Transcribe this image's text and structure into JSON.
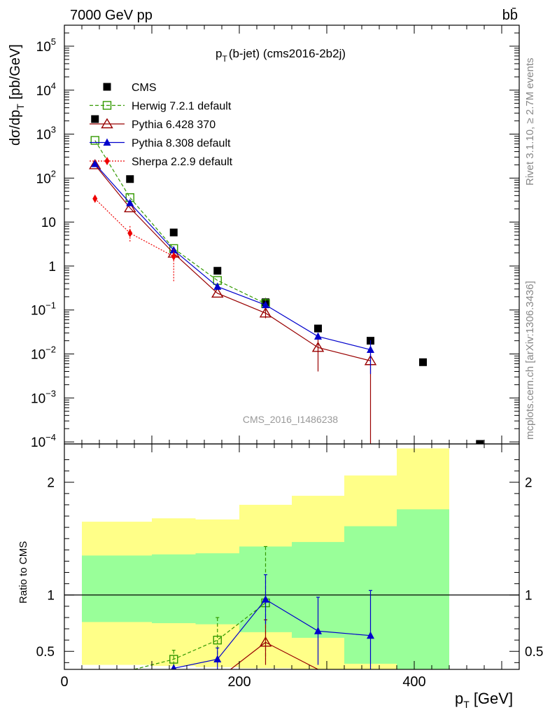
{
  "header": {
    "energy": "7000 GeV pp",
    "process": "bb̄",
    "title_main": "p",
    "title_sub": "T",
    "title_rest": "(b-jet) (cms2016-2b2j)"
  },
  "side_text": {
    "rivet": "Rivet 3.1.10, ≥ 2.7M events",
    "mcplots": "mcplots.cern.ch [arXiv:1306.3436]"
  },
  "watermark": "CMS_2016_I1486238",
  "axes": {
    "y_top_label": "dσ/dp",
    "y_top_label_sub": "T",
    "y_top_label_unit": "[pb/GeV]",
    "y_bottom_label": "Ratio to CMS",
    "x_label": "p",
    "x_label_sub": "T",
    "x_label_unit": "[GeV]"
  },
  "chart_data": [
    {
      "type": "line",
      "panel": "main",
      "yscale": "log",
      "xlim": [
        0,
        520
      ],
      "ylim": [
        9e-05,
        300000
      ],
      "x_ticks": [
        0,
        200,
        400
      ],
      "y_ticks": [
        {
          "v": 0.0001,
          "base": "10",
          "exp": "−4"
        },
        {
          "v": 0.001,
          "base": "10",
          "exp": "−3"
        },
        {
          "v": 0.01,
          "base": "10",
          "exp": "−2"
        },
        {
          "v": 0.1,
          "base": "10",
          "exp": "−1"
        },
        {
          "v": 1,
          "base": "1",
          "exp": ""
        },
        {
          "v": 10,
          "base": "10",
          "exp": ""
        },
        {
          "v": 100,
          "base": "10",
          "exp": "2"
        },
        {
          "v": 1000,
          "base": "10",
          "exp": "3"
        },
        {
          "v": 10000,
          "base": "10",
          "exp": "4"
        },
        {
          "v": 100000,
          "base": "10",
          "exp": "5"
        }
      ],
      "series": [
        {
          "name": "CMS",
          "color": "#000000",
          "marker": "square",
          "line": "none",
          "x": [
            35,
            75,
            125,
            175,
            230,
            290,
            350,
            410,
            475
          ],
          "y": [
            2200,
            95,
            5.8,
            0.78,
            0.15,
            0.038,
            0.02,
            0.0065,
            9e-05
          ]
        },
        {
          "name": "Herwig 7.2.1 default",
          "color": "#339900",
          "marker": "open-square",
          "line": "dashed",
          "x": [
            35,
            75,
            125,
            175,
            230
          ],
          "y": [
            720,
            36,
            2.5,
            0.47,
            0.14
          ],
          "err": [
            0,
            0,
            0,
            0,
            0.05
          ]
        },
        {
          "name": "Pythia 6.428 370",
          "color": "#990000",
          "marker": "open-triangle",
          "line": "solid",
          "x": [
            35,
            75,
            125,
            175,
            230,
            290,
            350
          ],
          "y": [
            200,
            21,
            1.95,
            0.24,
            0.085,
            0.014,
            0.007
          ],
          "err_lo": [
            0,
            0,
            0,
            0,
            0.02,
            0.01,
            0.007
          ],
          "err_hi": [
            0,
            0,
            0,
            0,
            0.02,
            0.01,
            0.003
          ]
        },
        {
          "name": "Pythia 8.308 default",
          "color": "#0000cc",
          "marker": "triangle",
          "line": "solid",
          "x": [
            35,
            75,
            125,
            175,
            230,
            290,
            350
          ],
          "y": [
            210,
            27,
            2.3,
            0.34,
            0.13,
            0.025,
            0.0125
          ],
          "err_lo": [
            0,
            0,
            0,
            0,
            0,
            0,
            0.009
          ],
          "err_hi": [
            0,
            0,
            0,
            0,
            0,
            0,
            0.008
          ]
        },
        {
          "name": "Sherpa 2.2.9 default",
          "color": "#ee0000",
          "marker": "diamond",
          "line": "dotted",
          "x": [
            35,
            75,
            125
          ],
          "y": [
            34,
            5.6,
            1.65
          ],
          "err_lo": [
            6,
            2,
            1.2
          ],
          "err_hi": [
            6,
            2.5,
            0.8
          ]
        }
      ]
    },
    {
      "type": "line",
      "panel": "ratio",
      "xlim": [
        0,
        520
      ],
      "ylim": [
        0.34,
        2.34
      ],
      "y_ticks": [
        0.5,
        1,
        2
      ],
      "reference": 1,
      "bands": [
        {
          "x0": 20,
          "x1": 100,
          "yellow": [
            0.38,
            1.65
          ],
          "green": [
            0.76,
            1.35
          ]
        },
        {
          "x0": 100,
          "x1": 150,
          "yellow": [
            0.37,
            1.68
          ],
          "green": [
            0.75,
            1.36
          ]
        },
        {
          "x0": 150,
          "x1": 200,
          "yellow": [
            0.36,
            1.67
          ],
          "green": [
            0.74,
            1.37
          ]
        },
        {
          "x0": 200,
          "x1": 260,
          "yellow": [
            0.35,
            1.8
          ],
          "green": [
            0.67,
            1.43
          ]
        },
        {
          "x0": 260,
          "x1": 320,
          "yellow": [
            0.34,
            1.88
          ],
          "green": [
            0.62,
            1.47
          ]
        },
        {
          "x0": 320,
          "x1": 380,
          "yellow": [
            0.34,
            2.06
          ],
          "green": [
            0.39,
            1.61
          ]
        },
        {
          "x0": 380,
          "x1": 440,
          "yellow": [
            0.34,
            2.3
          ],
          "green": [
            0.34,
            1.76
          ]
        }
      ],
      "series": [
        {
          "name": "Herwig 7.2.1 default",
          "color": "#339900",
          "marker": "open-square",
          "line": "dashed",
          "x": [
            80,
            125,
            175,
            230
          ],
          "y": [
            0.34,
            0.43,
            0.6,
            0.93
          ],
          "err": [
            0,
            0.08,
            0.2,
            0.5
          ]
        },
        {
          "name": "Pythia 6.428 370",
          "color": "#990000",
          "marker": "open-triangle",
          "line": "solid",
          "x": [
            190,
            230,
            290
          ],
          "y": [
            0.34,
            0.58,
            0.34
          ],
          "err": [
            0,
            0.2,
            0
          ]
        },
        {
          "name": "Pythia 8.308 default",
          "color": "#0000cc",
          "marker": "triangle",
          "line": "solid",
          "x": [
            125,
            175,
            230,
            290,
            350
          ],
          "y": [
            0.35,
            0.43,
            0.96,
            0.68,
            0.64
          ],
          "err": [
            0,
            0.1,
            0.22,
            0.3,
            0.4
          ]
        }
      ]
    }
  ]
}
